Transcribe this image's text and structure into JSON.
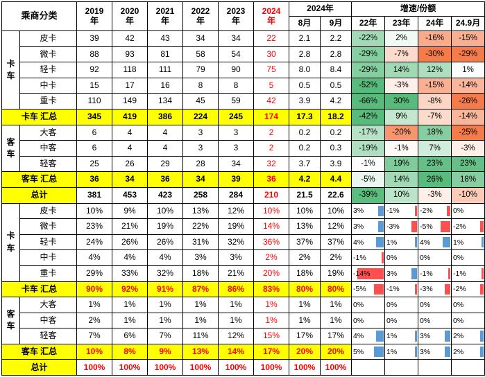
{
  "palette": {
    "highlight_yellow": "#FFFF00",
    "accent_red": "#FF0000",
    "heat_green": "#57BB7B",
    "heat_orange": "#F57C4A",
    "bar_blue": "#5B9BD5",
    "bar_red": "#FF4F4F",
    "grid_black": "#000000"
  },
  "chart_data": {
    "type": "table",
    "header": {
      "corner": "乘商分类",
      "years": [
        {
          "line1": "2019",
          "line2": "年",
          "red": false
        },
        {
          "line1": "2020",
          "line2": "年",
          "red": false
        },
        {
          "line1": "2021",
          "line2": "年",
          "red": false
        },
        {
          "line1": "2022",
          "line2": "年",
          "red": false
        },
        {
          "line1": "2023",
          "line2": "年",
          "red": false
        },
        {
          "line1": "2024",
          "line2": "年",
          "red": true
        }
      ],
      "months_group": "2024年",
      "months": [
        "8月",
        "9月"
      ],
      "growth_group": "增速/份额",
      "growth_cols": [
        "22年",
        "23年",
        "24年",
        "24.9月"
      ]
    },
    "sections": [
      {
        "style": "heatmap",
        "rows": [
          {
            "kind": "item",
            "group": "卡车",
            "groupSpan": 5,
            "label": "皮卡",
            "values": [
              "39",
              "42",
              "43",
              "34",
              "34",
              "22",
              "2.1",
              "2.2"
            ],
            "growth": [
              "-22%",
              "2%",
              "-16%",
              "-15%"
            ]
          },
          {
            "kind": "item",
            "label": "微卡",
            "values": [
              "88",
              "93",
              "81",
              "58",
              "54",
              "30",
              "2.8",
              "2.8"
            ],
            "growth": [
              "-29%",
              "-7%",
              "-30%",
              "-29%"
            ]
          },
          {
            "kind": "item",
            "label": "轻卡",
            "values": [
              "92",
              "118",
              "111",
              "79",
              "90",
              "75",
              "8.0",
              "8.4"
            ],
            "growth": [
              "-29%",
              "14%",
              "12%",
              "1%"
            ]
          },
          {
            "kind": "item",
            "label": "中卡",
            "values": [
              "15",
              "17",
              "16",
              "8",
              "8",
              "5",
              "0.5",
              "0.5"
            ],
            "growth": [
              "-52%",
              "-3%",
              "-15%",
              "-14%"
            ]
          },
          {
            "kind": "item",
            "label": "重卡",
            "values": [
              "110",
              "149",
              "134",
              "45",
              "59",
              "42",
              "3.9",
              "4.2"
            ],
            "growth": [
              "-66%",
              "30%",
              "-8%",
              "-26%"
            ]
          },
          {
            "kind": "subtotal",
            "label": "卡车 汇总",
            "values": [
              "345",
              "419",
              "386",
              "224",
              "245",
              "174",
              "17.3",
              "18.2"
            ],
            "growth": [
              "-42%",
              "9%",
              "-7%",
              "-14%"
            ]
          },
          {
            "kind": "item",
            "group": "客车",
            "groupSpan": 3,
            "label": "大客",
            "values": [
              "6",
              "4",
              "4",
              "3",
              "3",
              "2",
              "0.2",
              "0.2"
            ],
            "growth": [
              "-17%",
              "-20%",
              "18%",
              "-25%"
            ]
          },
          {
            "kind": "item",
            "label": "中客",
            "values": [
              "6",
              "4",
              "4",
              "3",
              "3",
              "2",
              "0.2",
              "0.3"
            ],
            "growth": [
              "-19%",
              "-1%",
              "7%",
              "-3%"
            ]
          },
          {
            "kind": "item",
            "label": "轻客",
            "values": [
              "25",
              "26",
              "29",
              "28",
              "34",
              "32",
              "3.7",
              "3.9"
            ],
            "growth": [
              "-1%",
              "19%",
              "23%",
              "23%"
            ]
          },
          {
            "kind": "subtotal",
            "label": "客车 汇总",
            "values": [
              "36",
              "34",
              "36",
              "34",
              "39",
              "36",
              "4.2",
              "4.4"
            ],
            "growth": [
              "-5%",
              "14%",
              "26%",
              "18%"
            ]
          },
          {
            "kind": "total",
            "label": "总计",
            "values": [
              "381",
              "453",
              "423",
              "258",
              "284",
              "210",
              "21.5",
              "22.6"
            ],
            "growth": [
              "-39%",
              "10%",
              "-3%",
              "-10%"
            ]
          }
        ]
      },
      {
        "style": "bars",
        "rows": [
          {
            "kind": "item",
            "group": "卡车",
            "groupSpan": 5,
            "label": "皮卡",
            "values": [
              "10%",
              "9%",
              "10%",
              "13%",
              "12%",
              "10%",
              "10%",
              "10%"
            ],
            "growth": [
              "3%",
              "-1%",
              "-2%",
              "0%"
            ]
          },
          {
            "kind": "item",
            "label": "微卡",
            "values": [
              "23%",
              "21%",
              "19%",
              "22%",
              "19%",
              "14%",
              "13%",
              "12%"
            ],
            "growth": [
              "3%",
              "-3%",
              "-5%",
              "-2%"
            ]
          },
          {
            "kind": "item",
            "label": "轻卡",
            "values": [
              "24%",
              "26%",
              "26%",
              "31%",
              "32%",
              "36%",
              "37%",
              "37%"
            ],
            "growth": [
              "4%",
              "1%",
              "4%",
              "1%"
            ]
          },
          {
            "kind": "item",
            "label": "中卡",
            "values": [
              "4%",
              "4%",
              "4%",
              "3%",
              "3%",
              "2%",
              "2%",
              "2%"
            ],
            "growth": [
              "-1%",
              "0%",
              "0%",
              "0%"
            ]
          },
          {
            "kind": "item",
            "label": "重卡",
            "values": [
              "29%",
              "33%",
              "32%",
              "18%",
              "21%",
              "20%",
              "18%",
              "19%"
            ],
            "growth": [
              "-14%",
              "3%",
              "-1%",
              "-1%"
            ]
          },
          {
            "kind": "subtotal",
            "label": "卡车 汇总",
            "values": [
              "90%",
              "92%",
              "91%",
              "87%",
              "86%",
              "83%",
              "80%",
              "80%"
            ],
            "growth": [
              "-5%",
              "-1%",
              "-3%",
              "-2%"
            ]
          },
          {
            "kind": "item",
            "group": "客车",
            "groupSpan": 3,
            "label": "大客",
            "values": [
              "1%",
              "1%",
              "1%",
              "1%",
              "1%",
              "1%",
              "1%",
              "1%"
            ],
            "growth": [
              "0%",
              "0%",
              "0%",
              "0%"
            ]
          },
          {
            "kind": "item",
            "label": "中客",
            "values": [
              "2%",
              "1%",
              "1%",
              "1%",
              "1%",
              "1%",
              "1%",
              "1%"
            ],
            "growth": [
              "0%",
              "0%",
              "0%",
              "0%"
            ]
          },
          {
            "kind": "item",
            "label": "轻客",
            "values": [
              "7%",
              "6%",
              "7%",
              "11%",
              "12%",
              "15%",
              "17%",
              "17%"
            ],
            "growth": [
              "4%",
              "1%",
              "3%",
              "2%"
            ]
          },
          {
            "kind": "subtotal",
            "label": "客车 汇总",
            "values": [
              "10%",
              "8%",
              "9%",
              "13%",
              "14%",
              "17%",
              "20%",
              "20%"
            ],
            "growth": [
              "5%",
              "1%",
              "3%",
              "2%"
            ]
          },
          {
            "kind": "total",
            "label": "总计",
            "values": [
              "100%",
              "100%",
              "100%",
              "100%",
              "100%",
              "100%",
              "100%",
              "100%"
            ],
            "growth": [
              "",
              "",
              "",
              ""
            ]
          }
        ]
      }
    ]
  }
}
